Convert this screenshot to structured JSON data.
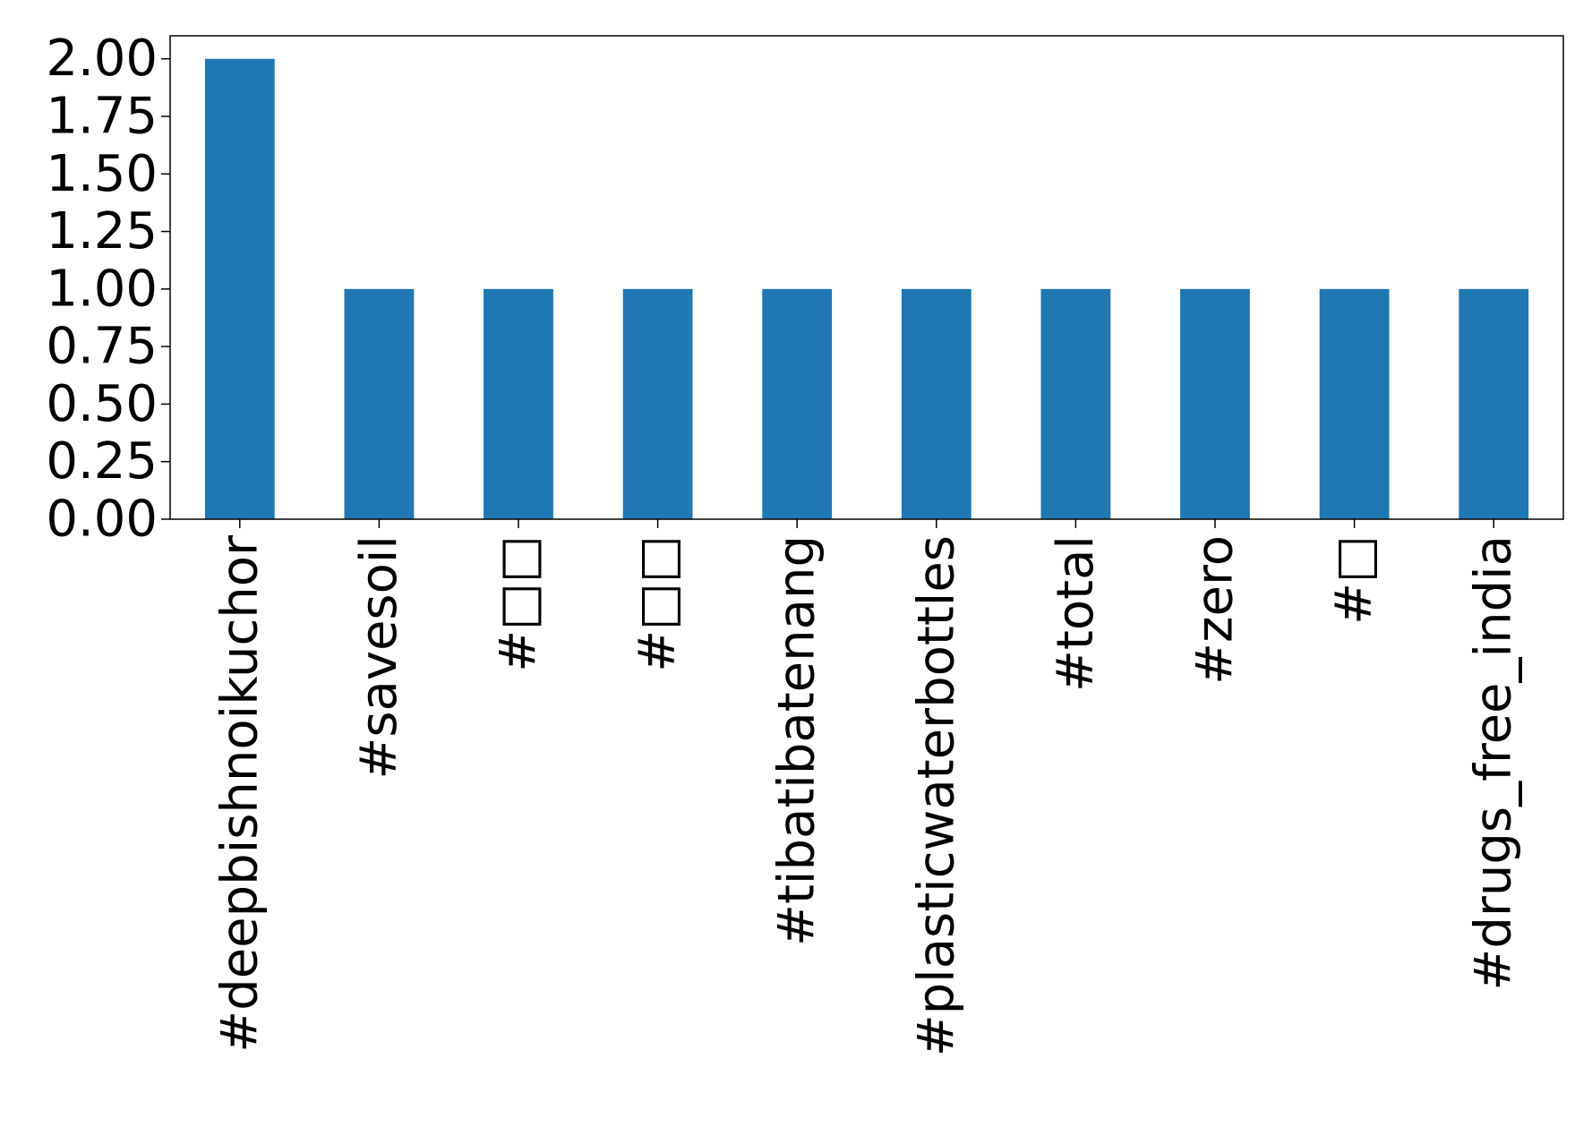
{
  "chart_data": {
    "type": "bar",
    "title": "",
    "xlabel": "",
    "ylabel": "",
    "categories": [
      "#deepbishnoikuchor",
      "#savesoil",
      "#□□",
      "#□□",
      "#tibatibatenang",
      "#plasticwaterbottles",
      "#total",
      "#zero",
      "#□",
      "#drugs_free_india"
    ],
    "values": [
      2,
      1,
      1,
      1,
      1,
      1,
      1,
      1,
      1,
      1
    ],
    "ylim": [
      0,
      2.1
    ],
    "yticks": [
      "0.00",
      "0.25",
      "0.50",
      "0.75",
      "1.00",
      "1.25",
      "1.50",
      "1.75",
      "2.00"
    ],
    "grid": false,
    "legend": "none",
    "colors": {
      "bar": "#1f77b4",
      "axis": "#000000",
      "text": "#000000"
    }
  }
}
